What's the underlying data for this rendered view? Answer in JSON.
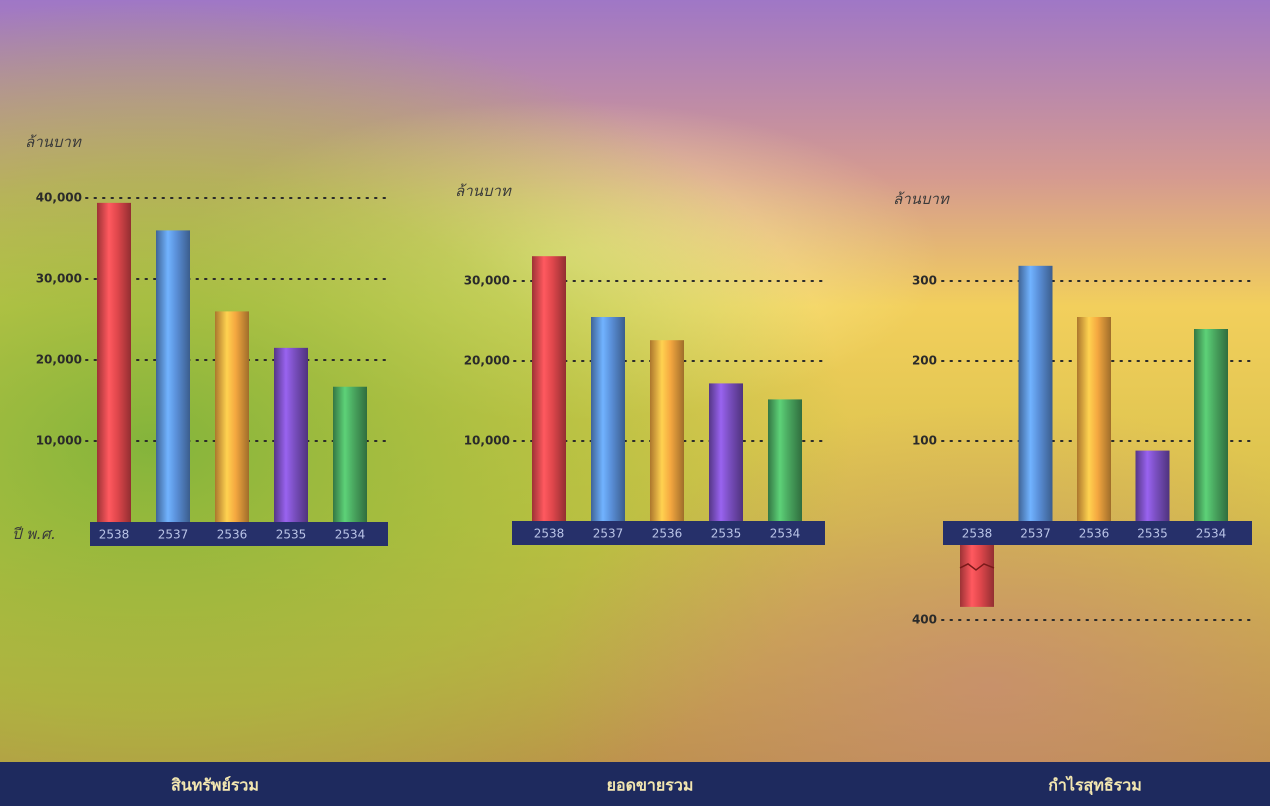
{
  "chart_data": [
    {
      "type": "bar",
      "title": "สินทรัพย์รวม",
      "y_label": "ล้านบาท",
      "x_label": "ปี พ.ศ.",
      "categories": [
        "2538",
        "2537",
        "2536",
        "2535",
        "2534"
      ],
      "values": [
        39400,
        36000,
        26000,
        21500,
        16700
      ],
      "colors": [
        "#e0474c",
        "#5a8fd8",
        "#f5a840",
        "#7a4fc0",
        "#4aa860"
      ],
      "ylim": [
        0,
        40000
      ],
      "yticks": [
        {
          "value": 10000,
          "label": "10,000"
        },
        {
          "value": 20000,
          "label": "20,000"
        },
        {
          "value": 30000,
          "label": "30,000"
        },
        {
          "value": 40000,
          "label": "40,000"
        }
      ],
      "grid": true
    },
    {
      "type": "bar",
      "title": "ยอดขายรวม",
      "y_label": "ล้านบาท",
      "categories": [
        "2538",
        "2537",
        "2536",
        "2535",
        "2534"
      ],
      "values": [
        33100,
        25500,
        22600,
        17200,
        15200
      ],
      "colors": [
        "#e0474c",
        "#5a8fd8",
        "#f5a840",
        "#7a4fc0",
        "#4aa860"
      ],
      "ylim": [
        0,
        35000
      ],
      "yticks": [
        {
          "value": 10000,
          "label": "10,000"
        },
        {
          "value": 20000,
          "label": "20,000"
        },
        {
          "value": 30000,
          "label": "30,000"
        }
      ],
      "grid": true
    },
    {
      "type": "bar",
      "title": "กำไรสุทธิรวม",
      "y_label": "ล้านบาท",
      "categories": [
        "2538",
        "2537",
        "2536",
        "2535",
        "2534"
      ],
      "values": [
        -330,
        319,
        255,
        88,
        240
      ],
      "colors": [
        "#e0474c",
        "#5a8fd8",
        "#f5a840",
        "#7a4fc0",
        "#4aa860"
      ],
      "ylim": [
        -400,
        330
      ],
      "broken_axis": true,
      "yticks": [
        100,
        200,
        300,
        {
          "value": -400,
          "label": "400"
        }
      ],
      "grid": true
    }
  ]
}
